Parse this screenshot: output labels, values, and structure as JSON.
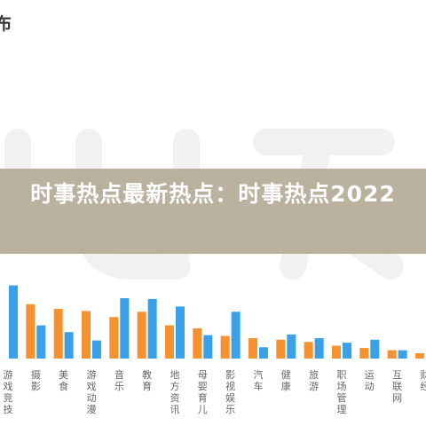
{
  "header": {
    "title_fragment": "布"
  },
  "banner": {
    "title": "时事热点最新热点：时事热点2022"
  },
  "colors": {
    "orange": "#F5922F",
    "blue": "#3AA1E8",
    "watermark": "#F1F1F1"
  },
  "chart_data": {
    "type": "bar",
    "title": "",
    "xlabel": "",
    "ylabel": "",
    "ylim": [
      0,
      100
    ],
    "grid": false,
    "categories": [
      "游戏竞技",
      "摄影",
      "美食",
      "游戏动漫",
      "音乐",
      "教育",
      "地方资讯",
      "母婴育儿",
      "影视娱乐",
      "汽车",
      "健康",
      "旅游",
      "职场管理",
      "运动",
      "互联网",
      "财经"
    ],
    "series": [
      {
        "values": [
          null,
          72,
          66,
          63,
          55,
          62,
          44,
          40,
          30,
          27,
          25,
          22,
          17,
          14,
          11,
          7
        ]
      },
      {
        "values": [
          97,
          44,
          35,
          24,
          80,
          79,
          69,
          31,
          62,
          15,
          32,
          27,
          21,
          25,
          11,
          14
        ]
      }
    ]
  }
}
